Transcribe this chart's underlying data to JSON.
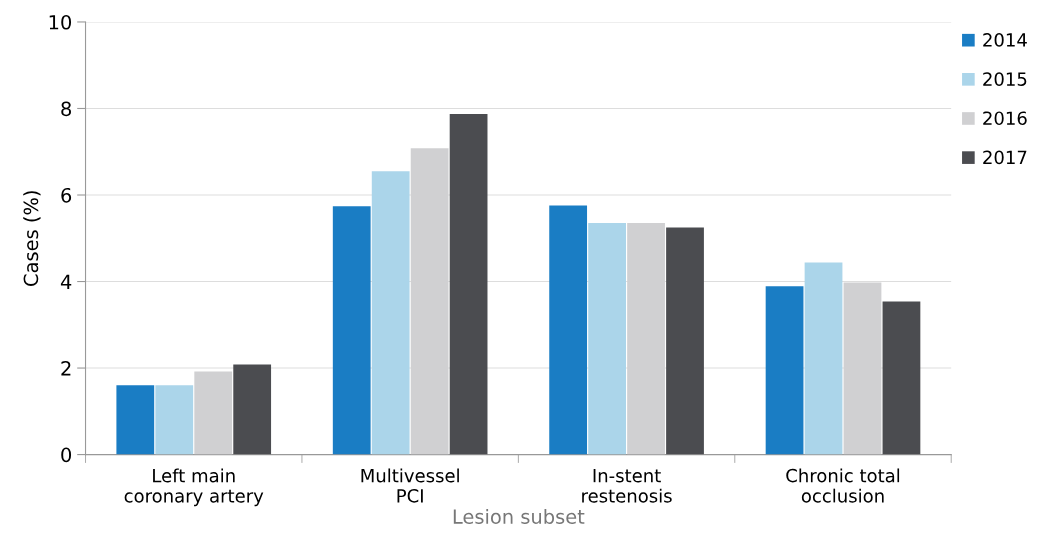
{
  "chart_data": {
    "type": "bar",
    "xlabel": "Lesion subset",
    "ylabel": "Cases (%)",
    "categories": [
      "Left main\ncoronary artery",
      "Multivessel\nPCI",
      "In-stent\nrestenosis",
      "Chronic total\nocclusion"
    ],
    "series": [
      {
        "name": "2014",
        "color": "#1a7dc4",
        "values": [
          1.6,
          5.74,
          5.76,
          3.89
        ]
      },
      {
        "name": "2015",
        "color": "#abd5ea",
        "values": [
          1.6,
          6.55,
          5.35,
          4.44
        ]
      },
      {
        "name": "2016",
        "color": "#d0d0d2",
        "values": [
          1.92,
          7.08,
          5.35,
          3.98
        ]
      },
      {
        "name": "2017",
        "color": "#4b4c50",
        "values": [
          2.08,
          7.87,
          5.25,
          3.54
        ]
      }
    ],
    "ylim": [
      0,
      10
    ],
    "yticks": [
      0,
      2,
      4,
      6,
      8,
      10
    ],
    "grid": "y",
    "legend": "top right"
  }
}
